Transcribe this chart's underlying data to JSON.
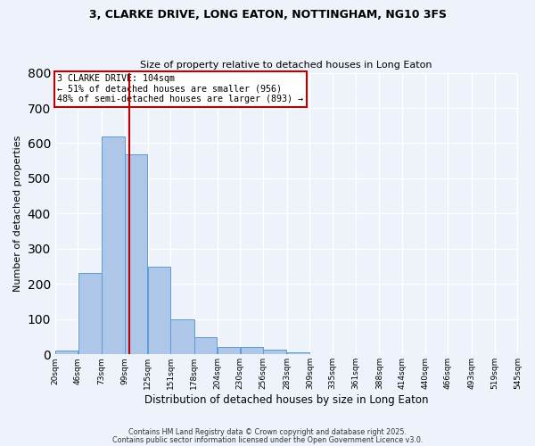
{
  "title_line1": "3, CLARKE DRIVE, LONG EATON, NOTTINGHAM, NG10 3FS",
  "title_line2": "Size of property relative to detached houses in Long Eaton",
  "xlabel": "Distribution of detached houses by size in Long Eaton",
  "ylabel": "Number of detached properties",
  "bar_values": [
    10,
    232,
    620,
    568,
    250,
    100,
    48,
    22,
    22,
    14,
    7,
    0,
    0,
    0,
    0,
    0,
    0,
    0,
    0,
    0
  ],
  "bin_edges": [
    20,
    46,
    73,
    99,
    125,
    151,
    178,
    204,
    230,
    256,
    283,
    309,
    335,
    361,
    388,
    414,
    440,
    466,
    493,
    519,
    545
  ],
  "bin_labels": [
    "20sqm",
    "46sqm",
    "73sqm",
    "99sqm",
    "125sqm",
    "151sqm",
    "178sqm",
    "204sqm",
    "230sqm",
    "256sqm",
    "283sqm",
    "309sqm",
    "335sqm",
    "361sqm",
    "388sqm",
    "414sqm",
    "440sqm",
    "466sqm",
    "493sqm",
    "519sqm",
    "545sqm"
  ],
  "bar_color": "#aec6e8",
  "bar_edgecolor": "#5b9bd5",
  "property_size": 104,
  "vline_color": "#c00000",
  "annotation_text": "3 CLARKE DRIVE: 104sqm\n← 51% of detached houses are smaller (956)\n48% of semi-detached houses are larger (893) →",
  "annotation_box_color": "#c00000",
  "annotation_text_color": "#000000",
  "ylim": [
    0,
    800
  ],
  "yticks": [
    0,
    100,
    200,
    300,
    400,
    500,
    600,
    700,
    800
  ],
  "background_color": "#eef2fa",
  "grid_color": "#ffffff",
  "footer_line1": "Contains HM Land Registry data © Crown copyright and database right 2025.",
  "footer_line2": "Contains public sector information licensed under the Open Government Licence v3.0."
}
